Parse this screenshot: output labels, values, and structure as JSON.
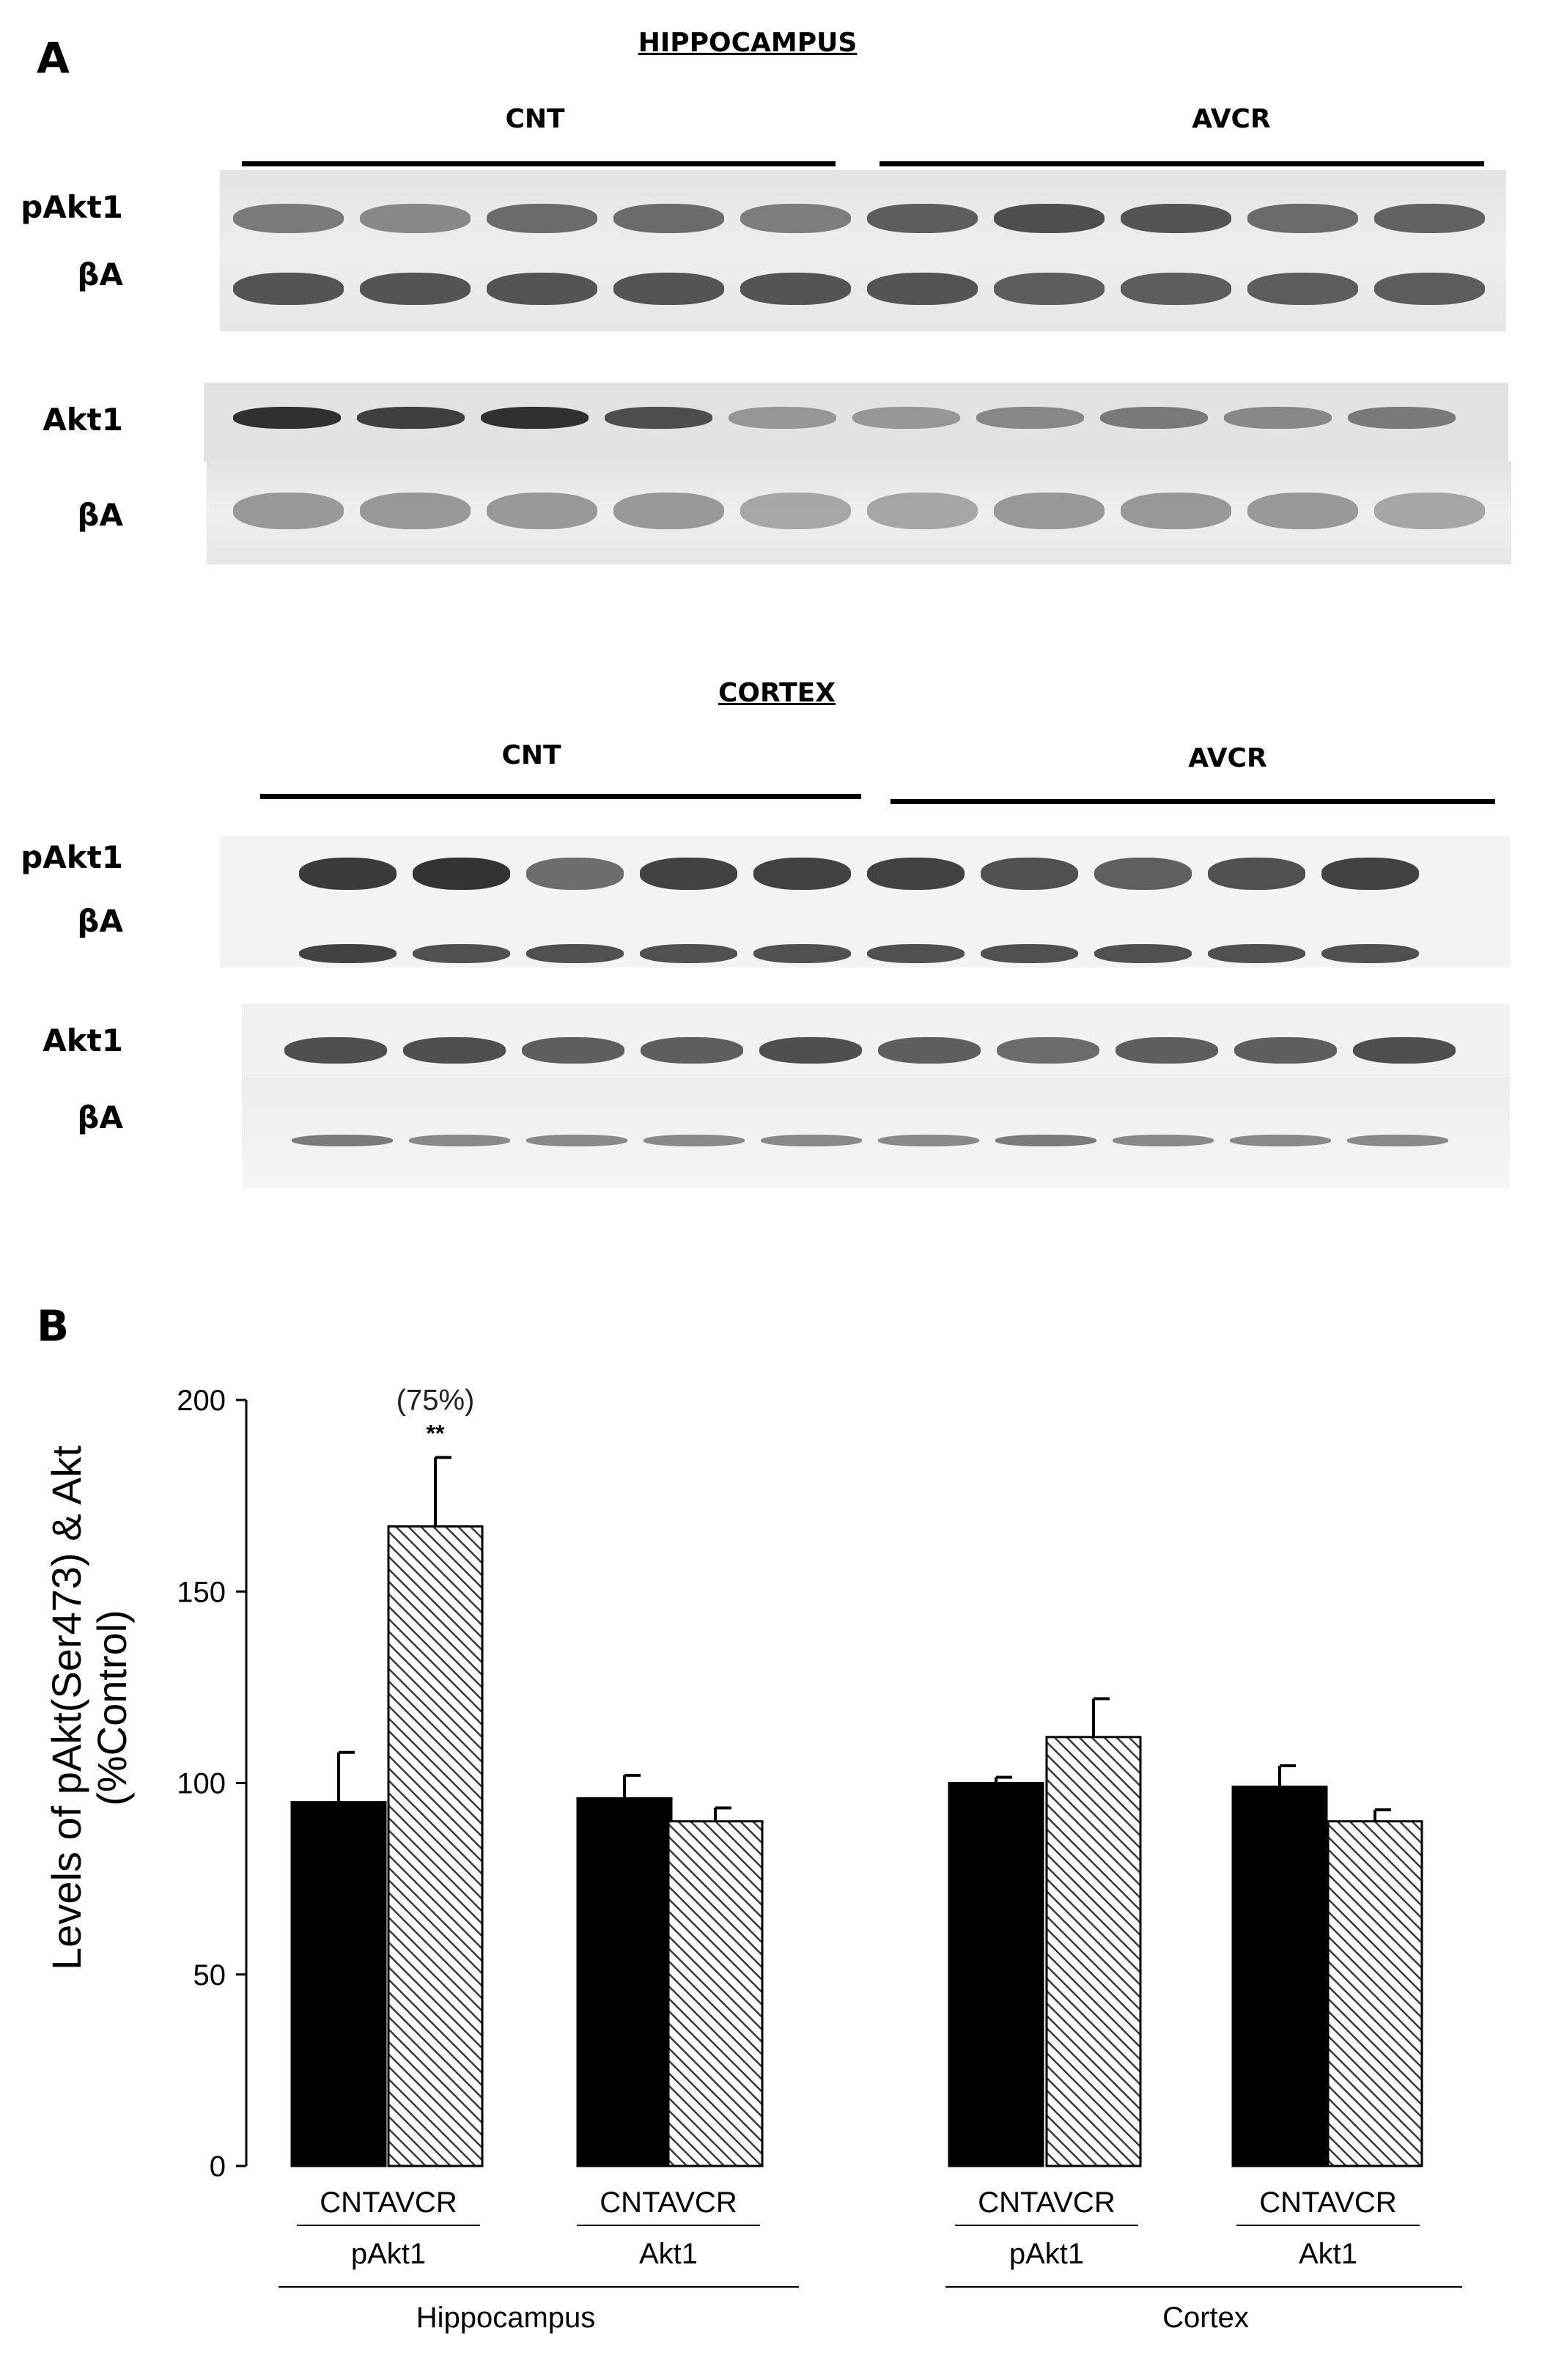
{
  "panel_a": {
    "letter": "A",
    "hippocampus": {
      "title": "HIPPOCAMPUS",
      "group_cnt": "CNT",
      "group_avcr": "AVCR",
      "row_labels": [
        "pAkt1",
        "βA",
        "Akt1",
        "βA"
      ]
    },
    "cortex": {
      "title": "CORTEX",
      "group_cnt": "CNT",
      "group_avcr": "AVCR",
      "row_labels": [
        "pAkt1",
        "βA",
        "Akt1",
        "βA"
      ]
    }
  },
  "panel_b": {
    "letter": "B"
  },
  "chart_data": {
    "type": "bar",
    "ylabel": "Levels of pAkt(Ser473) & Akt\n(%Control)",
    "ylim": [
      0,
      200
    ],
    "yticks": [
      0,
      50,
      100,
      150,
      200
    ],
    "series": [
      {
        "name": "CNT",
        "fill": "solid-black"
      },
      {
        "name": "AVCR",
        "fill": "diagonal-hatch"
      }
    ],
    "bars": [
      {
        "region": "Hippocampus",
        "protein": "pAkt1",
        "group": "CNT",
        "value": 95,
        "error": 13
      },
      {
        "region": "Hippocampus",
        "protein": "pAkt1",
        "group": "AVCR",
        "value": 167,
        "error": 18
      },
      {
        "region": "Hippocampus",
        "protein": "Akt1",
        "group": "CNT",
        "value": 96,
        "error": 6
      },
      {
        "region": "Hippocampus",
        "protein": "Akt1",
        "group": "AVCR",
        "value": 90,
        "error": 3.5
      },
      {
        "region": "Cortex",
        "protein": "pAkt1",
        "group": "CNT",
        "value": 100,
        "error": 1.5
      },
      {
        "region": "Cortex",
        "protein": "pAkt1",
        "group": "AVCR",
        "value": 112,
        "error": 10
      },
      {
        "region": "Cortex",
        "protein": "Akt1",
        "group": "CNT",
        "value": 99,
        "error": 5.5
      },
      {
        "region": "Cortex",
        "protein": "Akt1",
        "group": "AVCR",
        "value": 90,
        "error": 3
      }
    ],
    "annotations": [
      {
        "bar_index": 1,
        "text": "(75%)",
        "significance": "**"
      }
    ],
    "x_groups": [
      {
        "label_top": "CNTAVCR",
        "label": "pAkt1",
        "bars": [
          0,
          1
        ]
      },
      {
        "label_top": "CNTAVCR",
        "label": "Akt1",
        "bars": [
          2,
          3
        ]
      },
      {
        "label_top": "CNTAVCR",
        "label": "pAkt1",
        "bars": [
          4,
          5
        ]
      },
      {
        "label_top": "CNTAVCR",
        "label": "Akt1",
        "bars": [
          6,
          7
        ]
      }
    ],
    "regions": [
      {
        "label": "Hippocampus",
        "groups": [
          0,
          1
        ]
      },
      {
        "label": "Cortex",
        "groups": [
          2,
          3
        ]
      }
    ]
  }
}
